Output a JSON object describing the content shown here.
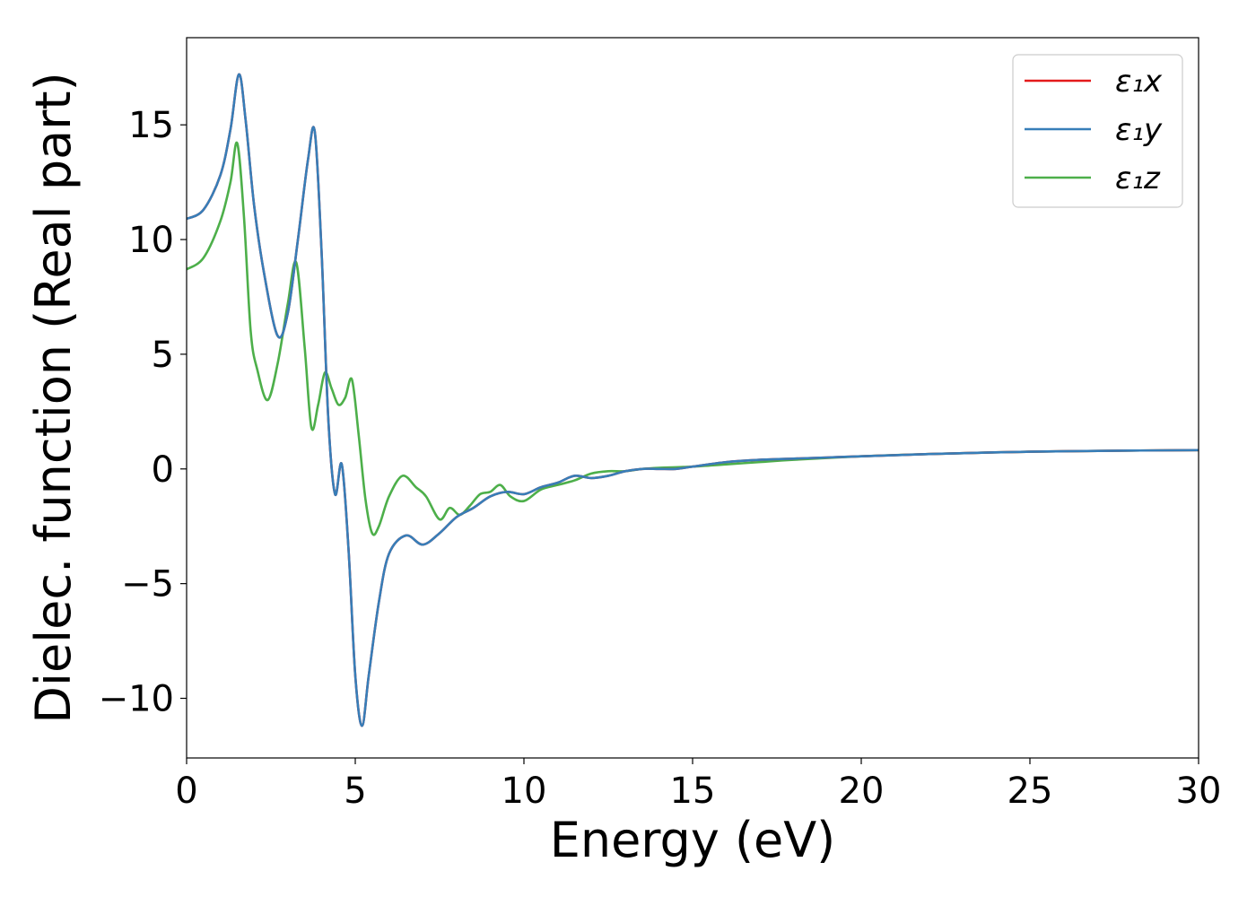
{
  "chart_data": {
    "type": "line",
    "title": "",
    "xlabel": "Energy (eV)",
    "ylabel": "Dielec. function (Real part)",
    "xlim": [
      0,
      30
    ],
    "ylim": [
      -12.6,
      18.8
    ],
    "xticks": [
      0,
      5,
      10,
      15,
      20,
      25,
      30
    ],
    "yticks": [
      -10,
      -5,
      0,
      5,
      10,
      15
    ],
    "ytick_labels": [
      "−10",
      "−5",
      "0",
      "5",
      "10",
      "15"
    ],
    "grid": false,
    "legend_position": "top-right",
    "series": [
      {
        "name": "ε₁x",
        "color": "#e41a1c",
        "x": [
          0,
          0.5,
          1.0,
          1.3,
          1.55,
          1.75,
          2.0,
          2.3,
          2.7,
          3.0,
          3.3,
          3.6,
          3.8,
          4.0,
          4.2,
          4.4,
          4.6,
          4.8,
          5.0,
          5.2,
          5.4,
          5.7,
          6.0,
          6.5,
          7.0,
          7.5,
          8.0,
          8.5,
          9.0,
          9.5,
          10.0,
          10.5,
          11.0,
          11.5,
          12.0,
          12.5,
          13.0,
          13.5,
          14.0,
          14.5,
          15.0,
          16.0,
          17.0,
          18.0,
          19.0,
          20.0,
          22.0,
          25.0,
          28.0,
          30.0
        ],
        "y": [
          10.9,
          11.3,
          12.8,
          14.8,
          17.2,
          15.2,
          11.5,
          8.5,
          5.8,
          6.8,
          10.0,
          13.5,
          14.7,
          9.5,
          2.2,
          -1.1,
          0.2,
          -3.5,
          -9.0,
          -11.2,
          -9.0,
          -5.8,
          -3.7,
          -2.9,
          -3.3,
          -2.8,
          -2.1,
          -1.7,
          -1.2,
          -1.0,
          -1.1,
          -0.8,
          -0.6,
          -0.3,
          -0.4,
          -0.3,
          -0.1,
          0.0,
          0.0,
          0.0,
          0.1,
          0.3,
          0.4,
          0.45,
          0.5,
          0.55,
          0.65,
          0.75,
          0.8,
          0.82
        ]
      },
      {
        "name": "ε₁y",
        "color": "#377eb8",
        "x": [
          0,
          0.5,
          1.0,
          1.3,
          1.55,
          1.75,
          2.0,
          2.3,
          2.7,
          3.0,
          3.3,
          3.6,
          3.8,
          4.0,
          4.2,
          4.4,
          4.6,
          4.8,
          5.0,
          5.2,
          5.4,
          5.7,
          6.0,
          6.5,
          7.0,
          7.5,
          8.0,
          8.5,
          9.0,
          9.5,
          10.0,
          10.5,
          11.0,
          11.5,
          12.0,
          12.5,
          13.0,
          13.5,
          14.0,
          14.5,
          15.0,
          16.0,
          17.0,
          18.0,
          19.0,
          20.0,
          22.0,
          25.0,
          28.0,
          30.0
        ],
        "y": [
          10.9,
          11.3,
          12.8,
          14.8,
          17.2,
          15.2,
          11.5,
          8.5,
          5.8,
          6.8,
          10.0,
          13.5,
          14.7,
          9.5,
          2.2,
          -1.1,
          0.2,
          -3.5,
          -9.0,
          -11.2,
          -9.0,
          -5.8,
          -3.7,
          -2.9,
          -3.3,
          -2.8,
          -2.1,
          -1.7,
          -1.2,
          -1.0,
          -1.1,
          -0.8,
          -0.6,
          -0.3,
          -0.4,
          -0.3,
          -0.1,
          0.0,
          0.0,
          0.0,
          0.1,
          0.3,
          0.4,
          0.45,
          0.5,
          0.55,
          0.65,
          0.75,
          0.8,
          0.82
        ]
      },
      {
        "name": "ε₁z",
        "color": "#4daf4a",
        "x": [
          0,
          0.5,
          1.0,
          1.3,
          1.5,
          1.7,
          1.9,
          2.1,
          2.4,
          2.7,
          3.0,
          3.25,
          3.5,
          3.7,
          3.9,
          4.1,
          4.3,
          4.5,
          4.7,
          4.9,
          5.1,
          5.3,
          5.5,
          5.7,
          6.0,
          6.4,
          6.8,
          7.1,
          7.5,
          7.8,
          8.1,
          8.4,
          8.7,
          9.0,
          9.3,
          9.6,
          10.0,
          10.5,
          11.0,
          11.5,
          12.0,
          12.5,
          13.0,
          13.5,
          14.0,
          15.0,
          16.0,
          17.0,
          18.0,
          20.0,
          22.0,
          25.0,
          28.0,
          30.0
        ],
        "y": [
          8.7,
          9.2,
          10.8,
          12.5,
          14.2,
          11.0,
          6.0,
          4.3,
          3.0,
          4.6,
          7.2,
          9.0,
          5.3,
          1.8,
          2.8,
          4.2,
          3.5,
          2.8,
          3.1,
          3.9,
          1.5,
          -1.3,
          -2.8,
          -2.5,
          -1.2,
          -0.3,
          -0.8,
          -1.2,
          -2.2,
          -1.7,
          -2.0,
          -1.6,
          -1.1,
          -1.0,
          -0.7,
          -1.2,
          -1.4,
          -0.9,
          -0.7,
          -0.5,
          -0.2,
          -0.1,
          -0.1,
          0.0,
          0.05,
          0.1,
          0.2,
          0.3,
          0.4,
          0.55,
          0.65,
          0.75,
          0.8,
          0.82
        ]
      }
    ]
  }
}
